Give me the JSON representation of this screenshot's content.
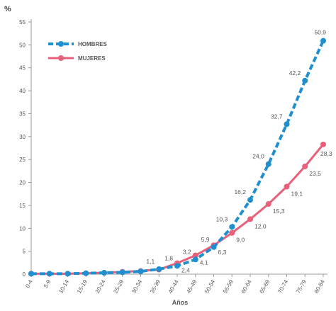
{
  "chart_data": {
    "type": "line",
    "unit_label": "%",
    "xlabel": "Años",
    "ylabel": "",
    "ylim": [
      0,
      55
    ],
    "yticks": [
      0,
      5,
      10,
      15,
      20,
      25,
      30,
      35,
      40,
      45,
      50,
      55
    ],
    "grid": false,
    "legend_position": "top-left",
    "categories": [
      "0-4",
      "5-9",
      "10-14",
      "15-19",
      "20-24",
      "25-29",
      "30-34",
      "35-39",
      "40-44",
      "45-49",
      "50-54",
      "55-59",
      "60-64",
      "65-69",
      "70-74",
      "75-79",
      "80-84"
    ],
    "series": [
      {
        "name": "HOMBRES",
        "color": "#1f8fd0",
        "style": "dashed",
        "values": [
          0.1,
          0.1,
          0.1,
          0.2,
          0.3,
          0.4,
          0.6,
          1.1,
          1.8,
          3.2,
          5.9,
          10.3,
          16.2,
          24.0,
          32.7,
          42.2,
          50.9
        ],
        "labels": [
          "",
          "",
          "",
          "",
          "",
          "",
          "",
          "1,1",
          "1,8",
          "3,2",
          "5,9",
          "10,3",
          "16,2",
          "24,0",
          "32,7",
          "42,2",
          "50,9"
        ]
      },
      {
        "name": "MUJERES",
        "color": "#e8607a",
        "style": "solid",
        "values": [
          0.1,
          0.1,
          0.1,
          0.2,
          0.3,
          0.5,
          0.7,
          1.0,
          2.4,
          4.1,
          6.3,
          9.0,
          12.0,
          15.3,
          19.1,
          23.5,
          28.3
        ],
        "labels": [
          "",
          "",
          "",
          "",
          "",
          "",
          "",
          "",
          "2,4",
          "4,1",
          "6,3",
          "9,0",
          "12,0",
          "15,3",
          "19,1",
          "23,5",
          "28,3"
        ]
      }
    ]
  }
}
